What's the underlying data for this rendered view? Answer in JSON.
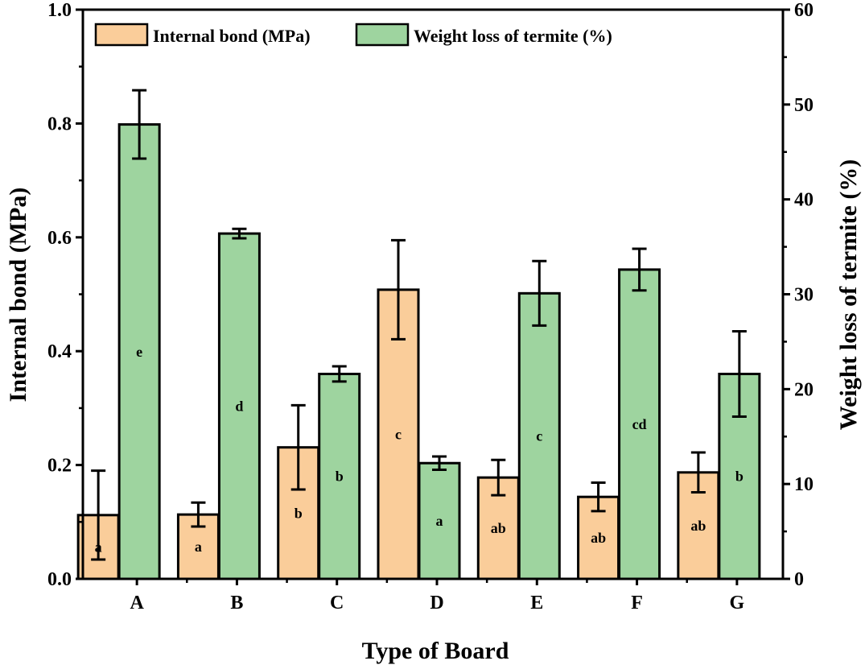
{
  "chart_data": {
    "type": "bar",
    "xlabel": "Type of Board",
    "ylabel_left": "Internal bond (MPa)",
    "ylabel_right": "Weight loss of termite (%)",
    "ylim_left": [
      0,
      1.0
    ],
    "ylim_right": [
      0,
      60
    ],
    "yticks_left": [
      "0.0",
      "0.2",
      "0.4",
      "0.6",
      "0.8",
      "1.0"
    ],
    "yticks_right": [
      "0",
      "10",
      "20",
      "30",
      "40",
      "50",
      "60"
    ],
    "legend_position": "top-left",
    "categories": [
      "A",
      "B",
      "C",
      "D",
      "E",
      "F",
      "G"
    ],
    "series": [
      {
        "name": "Internal bond (MPa)",
        "axis": "left",
        "color": "#FACD9A",
        "values": [
          0.112,
          0.113,
          0.231,
          0.508,
          0.178,
          0.144,
          0.187
        ],
        "errors": [
          0.078,
          0.021,
          0.074,
          0.087,
          0.031,
          0.025,
          0.035
        ],
        "labels": [
          "a",
          "a",
          "b",
          "c",
          "ab",
          "ab",
          "ab"
        ]
      },
      {
        "name": "Weight loss of termite (%)",
        "axis": "right",
        "color": "#9ED49F",
        "values": [
          47.9,
          36.4,
          21.6,
          12.2,
          30.1,
          32.6,
          21.6
        ],
        "errors": [
          3.6,
          0.5,
          0.8,
          0.7,
          3.4,
          2.2,
          4.5
        ],
        "labels": [
          "e",
          "d",
          "b",
          "a",
          "c",
          "cd",
          "b"
        ]
      }
    ]
  }
}
